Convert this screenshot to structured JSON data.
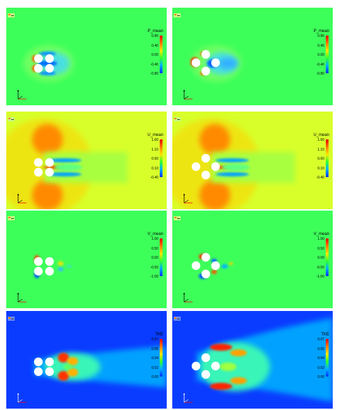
{
  "colorbar_colors": [
    "#e60000",
    "#ff7a00",
    "#ffe600",
    "#30ff30",
    "#00b0ff",
    "#0030ff"
  ],
  "rows": [
    {
      "variable": "P_mean",
      "ticks": [
        "0.80",
        "0.40",
        "0.00",
        "-0.40",
        "-0.80"
      ],
      "background": "#3dff5a"
    },
    {
      "variable": "U_mean",
      "ticks": [
        "1.60",
        "1.10",
        "0.60",
        "0.10",
        "-0.40"
      ],
      "background": "#d8ff2a"
    },
    {
      "variable": "V_mean",
      "ticks": [
        "1.00",
        "0.50",
        "0.00",
        "-0.50",
        "-1.00"
      ],
      "background": "#3dff5a"
    },
    {
      "variable": "TKE",
      "ticks": [
        "0.07",
        "0.05",
        "0.04",
        "0.02",
        "0.00"
      ],
      "background": "#0a3cff"
    }
  ],
  "icons": {
    "logo": "solver-logo-icon",
    "axis": "coordinate-axes-icon",
    "cylinder": "cylinder-cross-section-icon"
  }
}
